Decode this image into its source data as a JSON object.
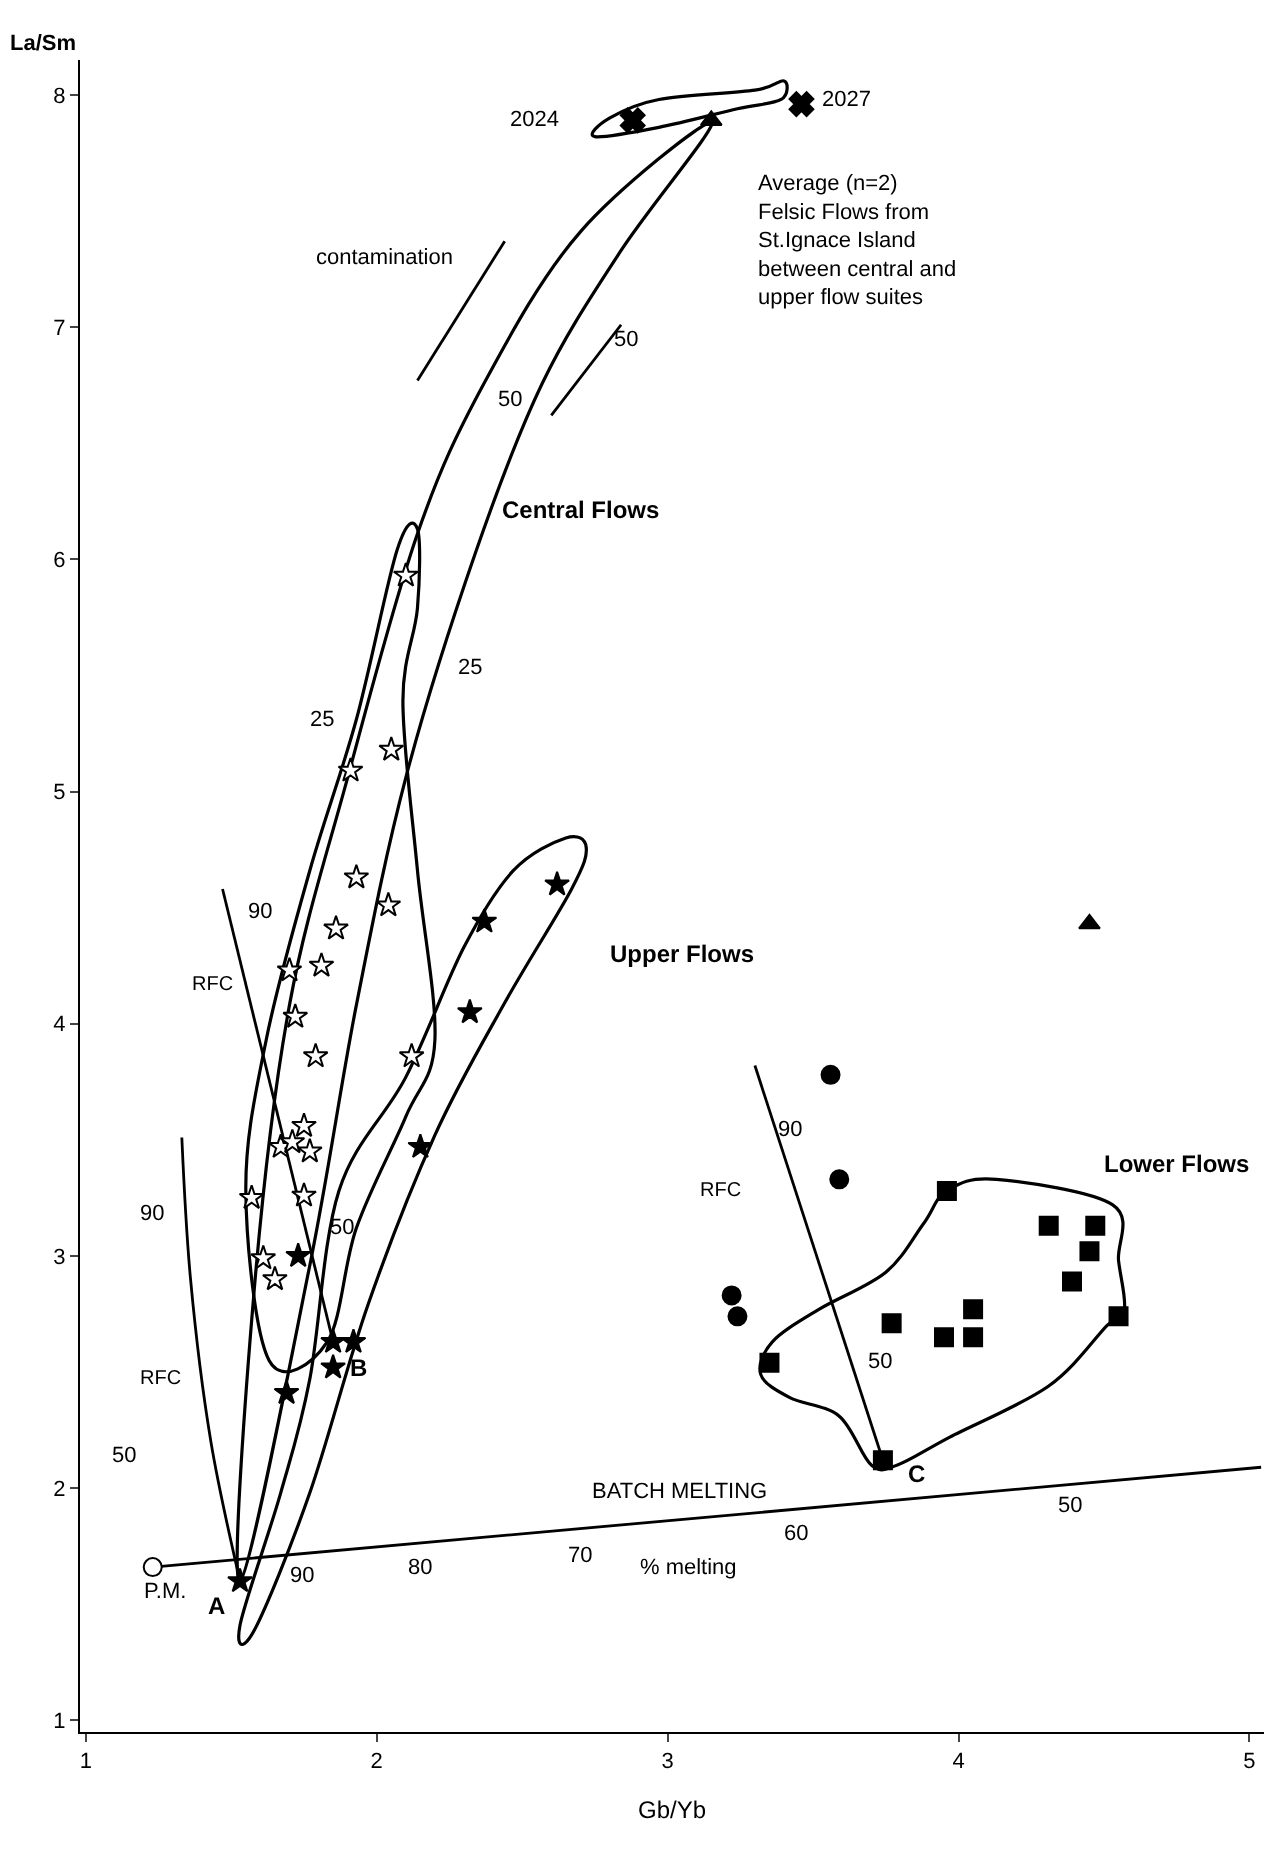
{
  "chart_data": {
    "type": "scatter",
    "xlabel": "Gb/Yb",
    "ylabel": "La/Sm",
    "xlim": [
      0.98,
      5.05
    ],
    "ylim": [
      0.95,
      8.15
    ],
    "xticks": [
      1,
      2,
      3,
      4,
      5
    ],
    "yticks": [
      1,
      2,
      3,
      4,
      5,
      6,
      7,
      8
    ],
    "grid": false,
    "series": [
      {
        "type": "line",
        "color": "#000000",
        "x": [
          1.23,
          5.04
        ],
        "values": [
          1.66,
          2.09
        ]
      },
      {
        "type": "line",
        "color": "#000000",
        "x": [
          1.53,
          1.43,
          1.36,
          1.33
        ],
        "values": [
          1.6,
          2.2,
          2.9,
          3.51
        ]
      },
      {
        "type": "line",
        "color": "#000000",
        "x": [
          1.85,
          1.47
        ],
        "values": [
          2.63,
          4.58
        ]
      },
      {
        "type": "line",
        "color": "#000000",
        "x": [
          3.74,
          3.3
        ],
        "values": [
          2.12,
          3.82
        ]
      },
      {
        "type": "line",
        "color": "#000000",
        "x": [
          2.14,
          2.44
        ],
        "values": [
          6.77,
          7.37
        ]
      },
      {
        "type": "line",
        "color": "#000000",
        "x": [
          2.6,
          2.84
        ],
        "values": [
          6.62,
          7.01
        ]
      },
      {
        "marker": "star",
        "color": "#ffffff",
        "x": [
          2.1,
          2.05,
          1.91,
          1.93,
          2.04,
          1.86,
          1.7,
          1.81,
          1.72,
          1.79,
          2.12,
          1.75,
          1.67,
          1.71,
          1.77,
          1.57,
          1.75,
          1.61,
          1.65
        ],
        "values": [
          5.93,
          5.18,
          5.09,
          4.63,
          4.51,
          4.41,
          4.23,
          4.25,
          4.03,
          3.86,
          3.86,
          3.56,
          3.47,
          3.49,
          3.45,
          3.25,
          3.26,
          2.99,
          2.9
        ]
      },
      {
        "marker": "star",
        "color": "#000000",
        "x": [
          2.62,
          2.37,
          2.32,
          2.15,
          1.73,
          1.92,
          1.85,
          1.69,
          1.53,
          1.85
        ],
        "values": [
          4.6,
          4.44,
          4.05,
          3.47,
          3.0,
          2.63,
          2.52,
          2.41,
          1.6,
          2.63
        ]
      },
      {
        "marker": "square",
        "color": "#000000",
        "x": [
          3.96,
          4.31,
          4.47,
          4.45,
          4.39,
          4.05,
          3.77,
          3.95,
          4.05,
          4.55,
          3.35,
          3.74
        ],
        "values": [
          3.28,
          3.13,
          3.13,
          3.02,
          2.89,
          2.77,
          2.71,
          2.65,
          2.65,
          2.74,
          2.54,
          2.12
        ]
      },
      {
        "marker": "circle",
        "color": "#000000",
        "x": [
          3.56,
          3.59,
          3.22,
          3.24
        ],
        "values": [
          3.78,
          3.33,
          2.83,
          2.74
        ]
      },
      {
        "marker": "triangle",
        "color": "#000000",
        "x": [
          4.45,
          3.15
        ],
        "values": [
          4.43,
          7.89
        ]
      },
      {
        "marker": "cross",
        "color": "#000000",
        "x": [
          2.88,
          3.46
        ],
        "values": [
          7.89,
          7.96
        ]
      },
      {
        "marker": "circle",
        "color": "#ffffff",
        "x": [
          1.23
        ],
        "values": [
          1.66
        ]
      }
    ],
    "annotations": [
      "2024",
      "2027",
      "Average (n=2)\nFelsic Flows from\nSt.Ignace Island\nbetween central and\nupper flow suites",
      "contamination",
      "Central Flows",
      "Upper Flows",
      "Lower Flows",
      "50",
      "50",
      "25",
      "25",
      "RFC",
      "50",
      "90",
      "RFC",
      "90",
      "50",
      "RFC",
      "90",
      "50",
      "BATCH MELTING",
      "% melting",
      "90",
      "80",
      "70",
      "60",
      "50",
      "P.M.",
      "A",
      "B",
      "C"
    ]
  }
}
